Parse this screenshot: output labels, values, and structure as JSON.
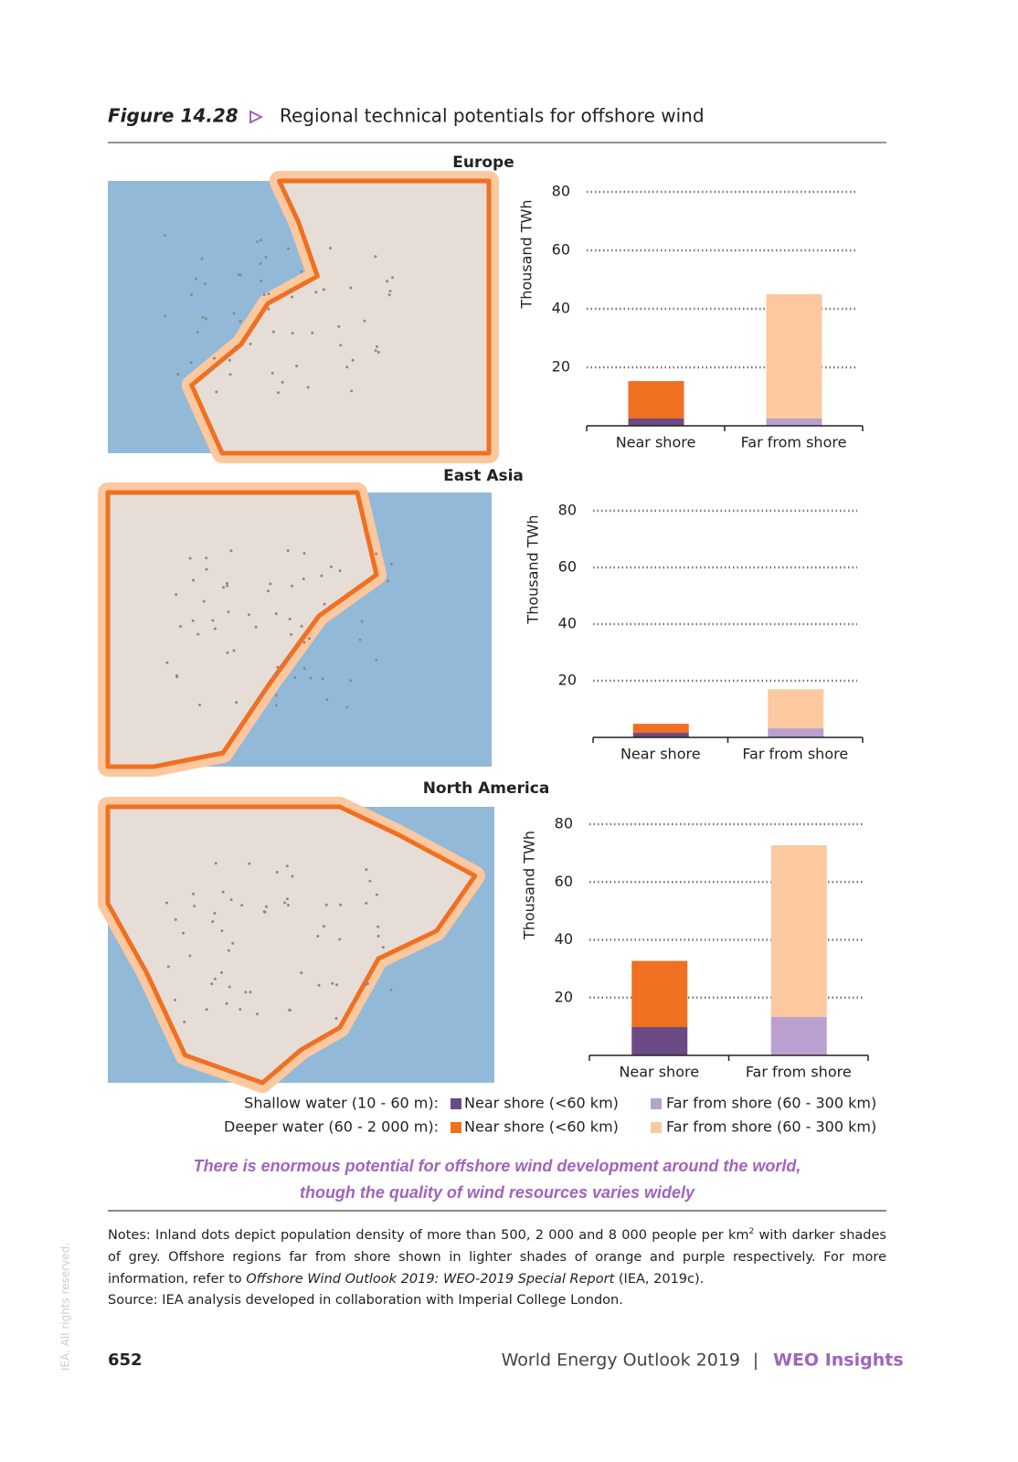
{
  "header": {
    "figure_label": "Figure 14.28",
    "title": "Regional technical potentials for offshore wind"
  },
  "chart_data": [
    {
      "type": "bar",
      "title": "Europe",
      "y_label": "Thousand TWh",
      "categories": [
        "Near shore",
        "Far from shore"
      ],
      "ylim": [
        0,
        80
      ],
      "yticks": [
        20,
        40,
        60,
        80
      ],
      "grid": true,
      "series": [
        {
          "name": "Near shore (<60 km)",
          "color": "#6b4a85",
          "values": [
            2.5,
            null
          ]
        },
        {
          "name": "Far from shore (60 - 300 km)",
          "color": "#b9a0cf",
          "values": [
            null,
            2.5
          ]
        },
        {
          "name": "Near shore (<60 km)",
          "color": "#f07022",
          "values": [
            12.8,
            null
          ]
        },
        {
          "name": "Far from shore (60 - 300 km)",
          "color": "#fcc8a0",
          "values": [
            null,
            42.5
          ]
        }
      ]
    },
    {
      "type": "bar",
      "title": "East Asia",
      "y_label": "Thousand TWh",
      "categories": [
        "Near shore",
        "Far from shore"
      ],
      "ylim": [
        0,
        80
      ],
      "yticks": [
        20,
        40,
        60,
        80
      ],
      "grid": true,
      "series": [
        {
          "name": "Near shore (<60 km)",
          "color": "#6b4a85",
          "values": [
            1.6,
            null
          ]
        },
        {
          "name": "Far from shore (60 - 300 km)",
          "color": "#b9a0cf",
          "values": [
            null,
            3.2
          ]
        },
        {
          "name": "Near shore (<60 km)",
          "color": "#f07022",
          "values": [
            3.2,
            null
          ]
        },
        {
          "name": "Far from shore (60 - 300 km)",
          "color": "#fcc8a0",
          "values": [
            null,
            13.8
          ]
        }
      ]
    },
    {
      "type": "bar",
      "title": "North America",
      "y_label": "Thousand TWh",
      "categories": [
        "Near shore",
        "Far from shore"
      ],
      "ylim": [
        0,
        80
      ],
      "yticks": [
        20,
        40,
        60,
        80
      ],
      "grid": true,
      "series": [
        {
          "name": "Near shore (<60 km)",
          "color": "#6b4a85",
          "values": [
            9.8,
            null
          ]
        },
        {
          "name": "Far from shore (60 - 300 km)",
          "color": "#b9a0cf",
          "values": [
            null,
            13.3
          ]
        },
        {
          "name": "Near shore (<60 km)",
          "color": "#f07022",
          "values": [
            22.9,
            null
          ]
        },
        {
          "name": "Far from shore (60 - 300 km)",
          "color": "#fcc8a0",
          "values": [
            null,
            59.4
          ]
        }
      ]
    }
  ],
  "legend": {
    "rows": [
      "Shallow water  (10 - 60 m):",
      "Deeper water  (60 - 2 000 m):"
    ]
  },
  "caption": [
    "There is enormous potential for offshore wind development around the world,",
    "though the quality of wind resources varies widely"
  ],
  "notes": {
    "part1": "Notes: Inland dots depict population density of more than 500, 2 000 and 8 000 people per km",
    "sup": "2",
    "part2": " with darker shades of grey. Offshore regions far from shore shown in lighter shades of orange and purple respectively. For more information, refer to ",
    "italic": "Offshore Wind Outlook 2019: WEO-2019 Special Report",
    "part3": " (IEA, 2019c)."
  },
  "source": "Source: IEA analysis developed in collaboration with Imperial College London.",
  "footer": {
    "page": "652",
    "publication": "World Energy Outlook 2019",
    "separator": "|",
    "section": "WEO Insights"
  },
  "side_note": "IEA. All rights reserved."
}
